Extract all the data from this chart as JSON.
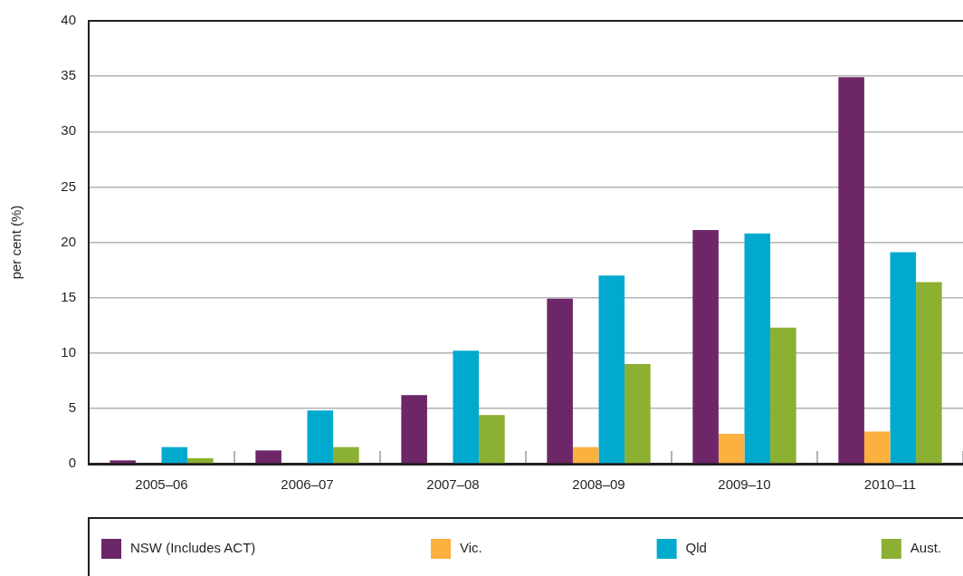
{
  "chart_data": {
    "type": "bar",
    "ylabel": "per cent (%)",
    "categories": [
      "2005–06",
      "2006–07",
      "2007–08",
      "2008–09",
      "2009–10",
      "2010–11"
    ],
    "series": [
      {
        "name": "NSW (Includes ACT)",
        "color": "#6d2769",
        "values": [
          0.3,
          1.2,
          6.2,
          14.9,
          21.1,
          34.9
        ]
      },
      {
        "name": "Vic.",
        "color": "#fbb040",
        "values": [
          null,
          null,
          null,
          1.5,
          2.7,
          2.9
        ]
      },
      {
        "name": "Qld",
        "color": "#00aacf",
        "values": [
          1.5,
          4.8,
          10.2,
          17.0,
          20.8,
          19.1
        ]
      },
      {
        "name": "Aust.",
        "color": "#8cb031",
        "values": [
          0.5,
          1.5,
          4.4,
          9.0,
          12.3,
          16.4
        ]
      }
    ],
    "ylim": [
      0,
      40
    ],
    "yticks": [
      0,
      5,
      10,
      15,
      20,
      25,
      30,
      35,
      40
    ],
    "grid": "y",
    "legend": "bottom"
  }
}
